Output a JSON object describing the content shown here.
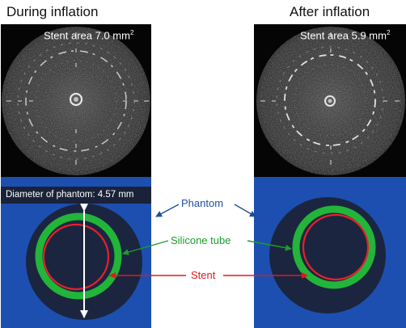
{
  "headings": {
    "left": "During inflation",
    "right": "After inflation"
  },
  "panels": {
    "left": {
      "stent_area_text": "Stent area 7.0 mm",
      "stent_area_unit_exp": "2"
    },
    "right": {
      "stent_area_text": "Stent area 5.9 mm",
      "stent_area_unit_exp": "2"
    }
  },
  "diameter_label": "Diameter of phantom: 4.57 mm",
  "callouts": {
    "phantom": "Phantom",
    "silicone_tube": "Silicone tube",
    "stent": "Stent"
  },
  "colors": {
    "phantom_label": "#1f4e9c",
    "silicone_label": "#1a9e2a",
    "stent_label": "#e01a1a",
    "panel_blue": "#1c4fb0",
    "phantom_disc": "#1b2540",
    "tube_green": "#22b53a",
    "stent_red": "#e8202a",
    "ivus_bg": "#050505"
  }
}
